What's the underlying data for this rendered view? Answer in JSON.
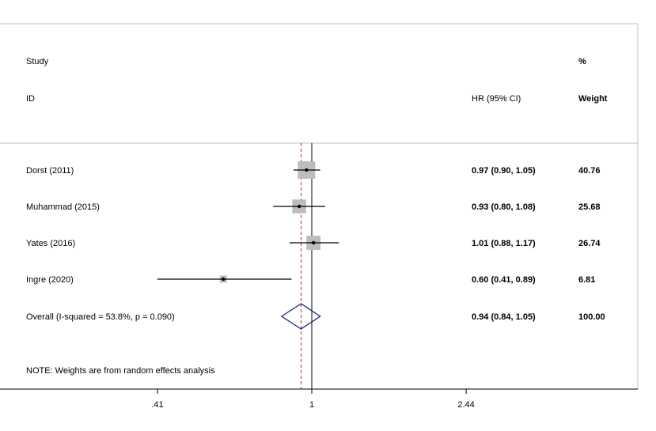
{
  "chart_data": {
    "type": "forest",
    "header": {
      "study_line1": "Study",
      "study_line2": "ID",
      "effect": "HR (95% CI)",
      "weight_line1": "%",
      "weight_line2": "Weight"
    },
    "studies": [
      {
        "label": "Dorst (2011)",
        "hr": 0.97,
        "lo": 0.9,
        "hi": 1.05,
        "ci_text": "0.97 (0.90, 1.05)",
        "weight": 40.76,
        "weight_text": "40.76"
      },
      {
        "label": "Muhammad (2015)",
        "hr": 0.93,
        "lo": 0.8,
        "hi": 1.08,
        "ci_text": "0.93 (0.80, 1.08)",
        "weight": 25.68,
        "weight_text": "25.68"
      },
      {
        "label": "Yates (2016)",
        "hr": 1.01,
        "lo": 0.88,
        "hi": 1.17,
        "ci_text": "1.01 (0.88, 1.17)",
        "weight": 26.74,
        "weight_text": "26.74"
      },
      {
        "label": "Ingre (2020)",
        "hr": 0.6,
        "lo": 0.41,
        "hi": 0.89,
        "ci_text": "0.60 (0.41, 0.89)",
        "weight": 6.81,
        "weight_text": "6.81"
      }
    ],
    "overall": {
      "label": "Overall  (I-squared = 53.8%, p = 0.090)",
      "hr": 0.94,
      "lo": 0.84,
      "hi": 1.05,
      "ci_text": "0.94 (0.84, 1.05)",
      "weight_text": "100.00"
    },
    "note": "NOTE: Weights are from random effects analysis",
    "x_axis": {
      "scale": "log",
      "ticks": [
        {
          "value": 0.41,
          "label": ".41"
        },
        {
          "value": 1,
          "label": "1"
        },
        {
          "value": 2.44,
          "label": "2.44"
        }
      ],
      "null_line": 1
    },
    "colors": {
      "box": "#bdbdbd",
      "diamond": "#1a237e",
      "overall_line": "#a0303a",
      "lines": "#000000"
    }
  }
}
